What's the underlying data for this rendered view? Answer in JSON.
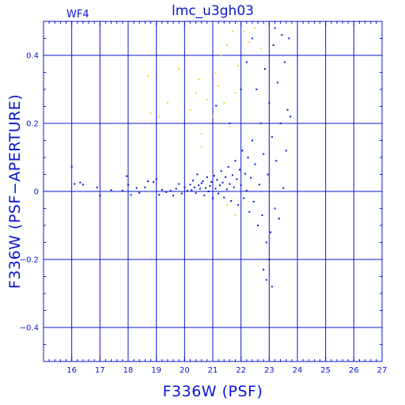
{
  "chart_data": {
    "type": "scatter",
    "title": "lmc_u3gh03",
    "panel_label": "WF4",
    "xlabel": "F336W (PSF)",
    "ylabel": "F336W (PSF−APERTURE)",
    "xlim": [
      15,
      27
    ],
    "ylim": [
      -0.5,
      0.5
    ],
    "x_ticks": [
      16,
      17,
      18,
      19,
      20,
      21,
      22,
      23,
      24,
      25,
      26,
      27
    ],
    "y_ticks": [
      -0.4,
      -0.2,
      0,
      0.2,
      0.4
    ],
    "y_tick_labels": [
      "−0.4",
      "−0.2",
      "0",
      "0.2",
      "0.4"
    ],
    "grid": true,
    "colors": {
      "main": "#0a14d2",
      "secondary": "#f0d23c"
    },
    "series": [
      {
        "color": "#0a14d2",
        "points": [
          [
            16.0,
            0.072
          ],
          [
            16.1,
            0.022
          ],
          [
            16.3,
            0.026
          ],
          [
            16.4,
            0.02
          ],
          [
            16.9,
            0.012
          ],
          [
            17.0,
            -0.012
          ],
          [
            17.4,
            0.004
          ],
          [
            17.8,
            0.002
          ],
          [
            17.95,
            0.045
          ],
          [
            18.0,
            0.02
          ],
          [
            18.1,
            -0.01
          ],
          [
            18.3,
            0.01
          ],
          [
            18.4,
            -0.004
          ],
          [
            18.6,
            0.012
          ],
          [
            18.7,
            0.03
          ],
          [
            18.9,
            0.028
          ],
          [
            19.0,
            0.036
          ],
          [
            19.1,
            -0.01
          ],
          [
            19.2,
            0.005
          ],
          [
            19.35,
            -0.002
          ],
          [
            19.5,
            0.002
          ],
          [
            19.6,
            -0.012
          ],
          [
            19.7,
            0.008
          ],
          [
            19.8,
            0.022
          ],
          [
            19.9,
            -0.006
          ],
          [
            20.0,
            0.012
          ],
          [
            20.1,
            0.002
          ],
          [
            20.2,
            0.02
          ],
          [
            20.25,
            0.004
          ],
          [
            20.3,
            0.032
          ],
          [
            20.35,
            0.012
          ],
          [
            20.4,
            -0.005
          ],
          [
            20.45,
            0.05
          ],
          [
            20.5,
            0.018
          ],
          [
            20.55,
            0.008
          ],
          [
            20.6,
            0.024
          ],
          [
            20.65,
            0.03
          ],
          [
            20.7,
            -0.012
          ],
          [
            20.75,
            0.01
          ],
          [
            20.8,
            0.042
          ],
          [
            20.85,
            0.0
          ],
          [
            20.9,
            0.016
          ],
          [
            20.95,
            0.028
          ],
          [
            21.0,
            -0.02
          ],
          [
            21.05,
            0.046
          ],
          [
            21.1,
            0.008
          ],
          [
            21.12,
            0.252
          ],
          [
            21.15,
            0.034
          ],
          [
            21.2,
            -0.006
          ],
          [
            21.25,
            0.018
          ],
          [
            21.3,
            0.06
          ],
          [
            21.35,
            0.026
          ],
          [
            21.4,
            -0.018
          ],
          [
            21.45,
            0.042
          ],
          [
            21.5,
            0.006
          ],
          [
            21.55,
            0.072
          ],
          [
            21.6,
            0.022
          ],
          [
            21.65,
            -0.028
          ],
          [
            21.7,
            0.048
          ],
          [
            21.75,
            0.012
          ],
          [
            21.8,
            0.09
          ],
          [
            21.85,
            0.036
          ],
          [
            21.9,
            -0.04
          ],
          [
            21.95,
            0.064
          ],
          [
            22.0,
            0.018
          ],
          [
            22.05,
            0.12
          ],
          [
            22.1,
            -0.02
          ],
          [
            22.15,
            0.052
          ],
          [
            22.2,
            0.002
          ],
          [
            22.25,
            0.1
          ],
          [
            22.3,
            -0.06
          ],
          [
            22.35,
            0.04
          ],
          [
            22.4,
            0.15
          ],
          [
            22.45,
            -0.03
          ],
          [
            22.5,
            0.08
          ],
          [
            22.55,
            0.3
          ],
          [
            22.6,
            -0.1
          ],
          [
            22.65,
            0.02
          ],
          [
            22.7,
            0.2
          ],
          [
            22.75,
            -0.07
          ],
          [
            22.8,
            0.11
          ],
          [
            22.85,
            0.36
          ],
          [
            22.9,
            -0.15
          ],
          [
            22.95,
            0.05
          ],
          [
            23.0,
            0.26
          ],
          [
            23.05,
            -0.12
          ],
          [
            23.1,
            0.16
          ],
          [
            23.15,
            0.43
          ],
          [
            23.2,
            -0.05
          ],
          [
            23.25,
            0.09
          ],
          [
            23.3,
            0.32
          ],
          [
            23.35,
            -0.08
          ],
          [
            23.4,
            0.2
          ],
          [
            23.45,
            0.46
          ],
          [
            23.5,
            0.01
          ],
          [
            23.55,
            0.38
          ],
          [
            23.6,
            0.12
          ],
          [
            23.65,
            0.24
          ],
          [
            23.7,
            0.45
          ],
          [
            23.75,
            0.22
          ],
          [
            22.9,
            -0.26
          ],
          [
            23.1,
            -0.28
          ],
          [
            22.8,
            -0.23
          ],
          [
            23.0,
            -0.2
          ],
          [
            22.2,
            0.38
          ],
          [
            21.6,
            0.2
          ],
          [
            22.4,
            0.45
          ],
          [
            22.0,
            0.3
          ],
          [
            23.2,
            0.48
          ]
        ]
      },
      {
        "color": "#f0d23c",
        "points": [
          [
            18.7,
            0.34
          ],
          [
            18.8,
            0.23
          ],
          [
            19.1,
            0.22
          ],
          [
            19.4,
            0.26
          ],
          [
            19.8,
            0.36
          ],
          [
            20.2,
            0.24
          ],
          [
            20.4,
            0.29
          ],
          [
            20.5,
            0.33
          ],
          [
            20.6,
            0.17
          ],
          [
            20.8,
            0.27
          ],
          [
            21.0,
            0.22
          ],
          [
            21.1,
            0.35
          ],
          [
            21.2,
            0.31
          ],
          [
            21.3,
            0.4
          ],
          [
            21.4,
            0.26
          ],
          [
            21.5,
            0.43
          ],
          [
            21.6,
            0.19
          ],
          [
            21.7,
            0.47
          ],
          [
            21.8,
            0.29
          ],
          [
            21.9,
            0.37
          ],
          [
            22.1,
            0.47
          ],
          [
            22.3,
            0.44
          ],
          [
            22.5,
            0.48
          ],
          [
            22.7,
            0.42
          ],
          [
            20.6,
            0.13
          ],
          [
            21.5,
            -0.04
          ],
          [
            21.8,
            -0.07
          ]
        ]
      }
    ]
  }
}
